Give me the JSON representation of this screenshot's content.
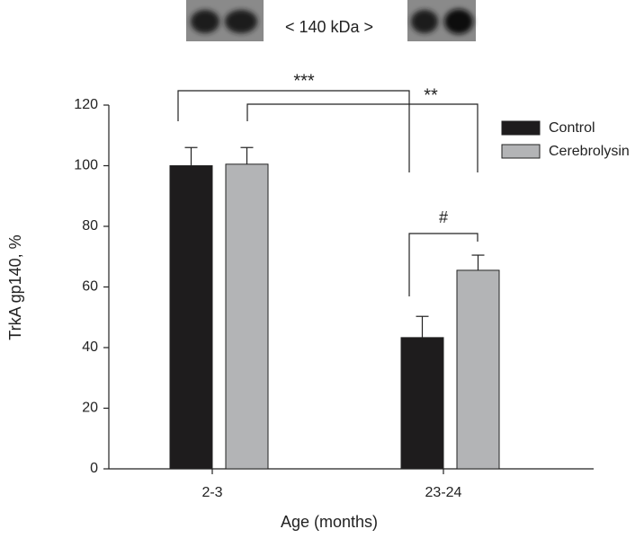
{
  "chart_data": {
    "type": "bar",
    "blot_label": "< 140 kDa >",
    "x_label": "Age (months)",
    "y_label": "TrkA gp140, %",
    "categories": [
      "2-3",
      "23-24"
    ],
    "series": [
      {
        "name": "Control",
        "color": "#1e1c1d",
        "values": [
          100,
          43.3
        ],
        "errors": [
          6,
          7
        ]
      },
      {
        "name": "Cerebrolysin",
        "color": "#b3b4b6",
        "values": [
          100.5,
          65.5
        ],
        "errors": [
          5.5,
          5
        ]
      }
    ],
    "ylim": [
      0,
      120
    ],
    "yticks": [
      0,
      20,
      40,
      60,
      80,
      100,
      120
    ],
    "annotations": [
      "***",
      "**",
      "#"
    ],
    "legend": "upper right"
  }
}
